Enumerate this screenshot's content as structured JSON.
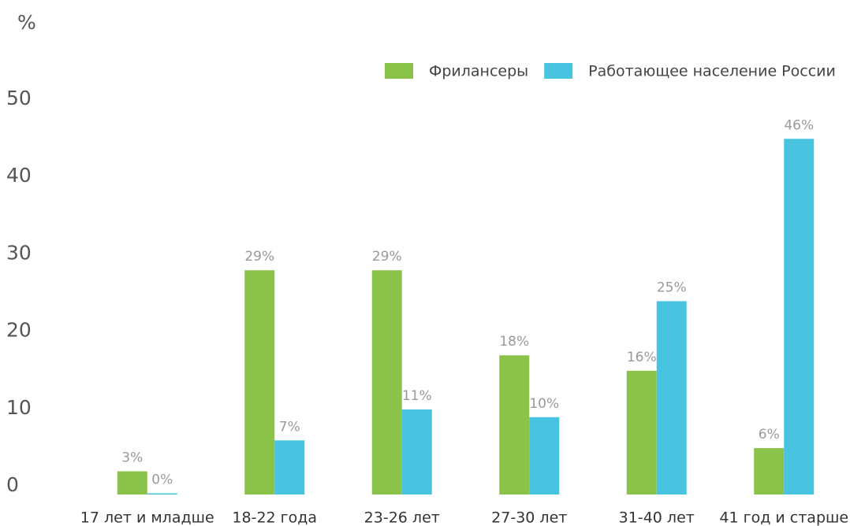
{
  "chart_data": {
    "type": "bar",
    "y_label": "%",
    "categories": [
      "17 лет и младше",
      "18-22 года",
      "23-26 лет",
      "27-30 лет",
      "31-40 лет",
      "41 год и старше"
    ],
    "series": [
      {
        "name": "Фрилансеры",
        "color": "#8bc34a",
        "values": [
          3,
          29,
          29,
          18,
          16,
          6
        ],
        "value_labels": [
          "3%",
          "29%",
          "29%",
          "18%",
          "16%",
          "6%"
        ]
      },
      {
        "name": "Работающее население России",
        "color": "#48c4e0",
        "values": [
          0,
          7,
          11,
          10,
          25,
          46
        ],
        "value_labels": [
          "0%",
          "7%",
          "11%",
          "10%",
          "25%",
          "46%"
        ]
      }
    ],
    "ylim": [
      0,
      50
    ],
    "yticks": [
      0,
      10,
      20,
      30,
      40,
      50
    ],
    "grid": false,
    "legend": "top-right"
  }
}
